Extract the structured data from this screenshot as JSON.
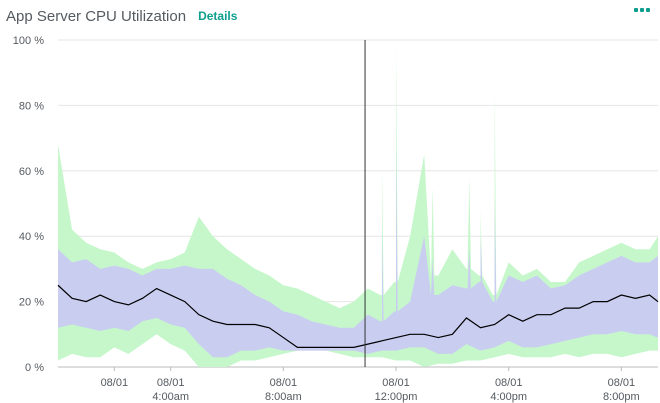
{
  "header": {
    "title": "App Server CPU Utilization",
    "details_label": "Details",
    "menu_icon": "more-horizontal-icon"
  },
  "colors": {
    "band_outer": "#c6f7cb",
    "band_inner": "#c9cdf0",
    "median_line": "#000000",
    "cursor_line": "#333333",
    "grid": "#e6e6e6",
    "accent": "#0e9e8e"
  },
  "chart_data": {
    "type": "area",
    "title": "App Server CPU Utilization",
    "xlabel": "",
    "ylabel": "",
    "y_unit": "%",
    "ylim": [
      0,
      100
    ],
    "y_ticks": [
      "0 %",
      "20 %",
      "40 %",
      "60 %",
      "80 %",
      "100 %"
    ],
    "xlim": [
      0,
      21.3
    ],
    "x_ticks": [
      {
        "x": 2.0,
        "date": "08/01",
        "time": ""
      },
      {
        "x": 4.0,
        "date": "08/01",
        "time": "4:00am"
      },
      {
        "x": 8.0,
        "date": "08/01",
        "time": "8:00am"
      },
      {
        "x": 12.0,
        "date": "08/01",
        "time": "12:00pm"
      },
      {
        "x": 16.0,
        "date": "08/01",
        "time": "4:00pm"
      },
      {
        "x": 20.0,
        "date": "08/01",
        "time": "8:00pm"
      }
    ],
    "cursor_x": 10.9,
    "grid": true,
    "x": [
      0,
      0.5,
      1,
      1.5,
      2,
      2.5,
      3,
      3.5,
      4,
      4.5,
      5,
      5.5,
      6,
      6.5,
      7,
      7.5,
      8,
      8.5,
      9,
      9.5,
      10,
      10.5,
      11,
      11.5,
      12,
      12.5,
      13,
      13.5,
      14,
      14.5,
      15,
      15.5,
      16,
      16.5,
      17,
      17.5,
      18,
      18.5,
      19,
      19.5,
      20,
      20.5,
      21,
      21.3
    ],
    "series": [
      {
        "name": "",
        "role": "outer_upper",
        "values": [
          68,
          42,
          38,
          36,
          35,
          32,
          30,
          32,
          33,
          35,
          46,
          40,
          36,
          33,
          30,
          28,
          25,
          24,
          22,
          20,
          18,
          20,
          24,
          22,
          26,
          40,
          65,
          28,
          36,
          30,
          28,
          22,
          32,
          28,
          30,
          26,
          26,
          32,
          34,
          36,
          38,
          36,
          36,
          40
        ]
      },
      {
        "name": "",
        "role": "inner_upper",
        "values": [
          36,
          32,
          33,
          30,
          31,
          30,
          28,
          30,
          30,
          31,
          30,
          30,
          27,
          25,
          22,
          20,
          17,
          16,
          14,
          13,
          12,
          12,
          16,
          14,
          17,
          20,
          40,
          22,
          25,
          24,
          26,
          20,
          28,
          26,
          28,
          24,
          25,
          28,
          30,
          32,
          34,
          32,
          32,
          34
        ]
      },
      {
        "name": "",
        "role": "median",
        "values": [
          25,
          21,
          20,
          22,
          20,
          19,
          21,
          24,
          22,
          20,
          16,
          14,
          13,
          13,
          13,
          12,
          9,
          6,
          6,
          6,
          6,
          6,
          7,
          8,
          9,
          10,
          10,
          9,
          10,
          15,
          12,
          13,
          16,
          14,
          16,
          16,
          18,
          18,
          20,
          20,
          22,
          21,
          22,
          20
        ]
      },
      {
        "name": "",
        "role": "inner_lower",
        "values": [
          12,
          13,
          12,
          11,
          12,
          11,
          14,
          15,
          13,
          12,
          7,
          3,
          3,
          5,
          5,
          6,
          5,
          5,
          5,
          5,
          5,
          5,
          4,
          5,
          5,
          6,
          6,
          4,
          4,
          7,
          5,
          6,
          8,
          6,
          6,
          7,
          8,
          9,
          10,
          10,
          11,
          10,
          10,
          9
        ]
      },
      {
        "name": "",
        "role": "outer_lower",
        "values": [
          2,
          4,
          3,
          3,
          6,
          4,
          7,
          10,
          7,
          5,
          0,
          0,
          0,
          2,
          2,
          3,
          4,
          5,
          5,
          5,
          4,
          3,
          3,
          3,
          2,
          2,
          0,
          1,
          1,
          2,
          2,
          3,
          4,
          3,
          3,
          3,
          4,
          3,
          4,
          4,
          3,
          4,
          5,
          5
        ]
      }
    ],
    "spikes": [
      {
        "x": 12.0,
        "outer": 99,
        "inner": 68
      },
      {
        "x": 11.5,
        "outer": 61,
        "inner": 42
      },
      {
        "x": 15.5,
        "outer": 86,
        "inner": 52
      },
      {
        "x": 13.3,
        "outer": 55,
        "inner": 33
      },
      {
        "x": 14.6,
        "outer": 58,
        "inner": 36
      },
      {
        "x": 15.0,
        "outer": 48,
        "inner": 40
      }
    ]
  }
}
